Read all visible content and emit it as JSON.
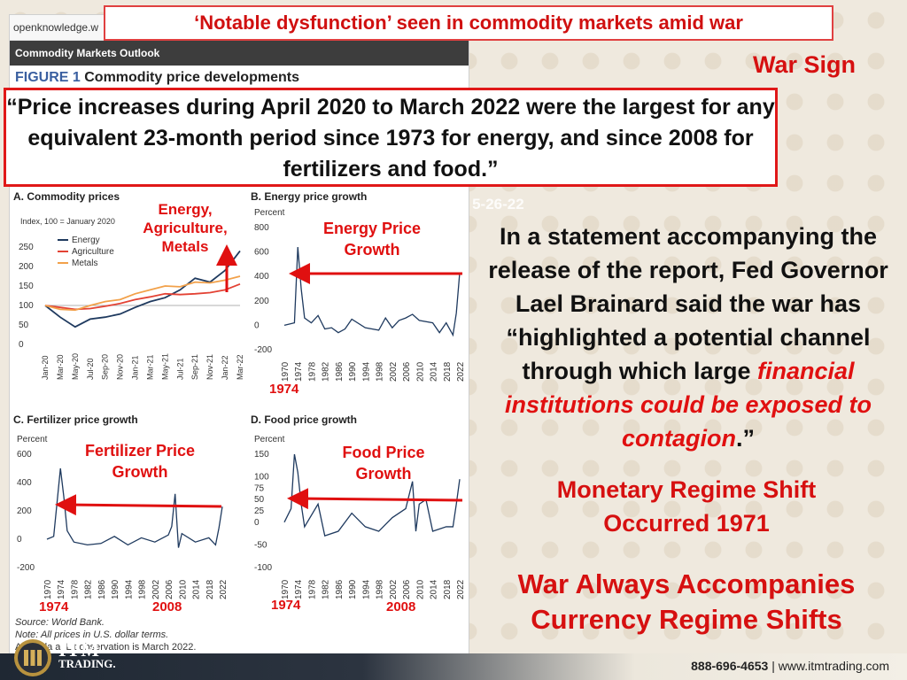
{
  "headline": "‘Notable dysfunction’ seen in commodity markets amid war",
  "war_sign": "War Sign",
  "faded_text": "u 5-26-22",
  "doc": {
    "url": "openknowledge.w",
    "section": "Commodity Markets Outlook",
    "figure_label": "FIGURE 1",
    "figure_title": "Commodity price developments",
    "source": "Source: World Bank.",
    "note1": "Note: All prices in U.S. dollar terms.",
    "note2": "A   thly da  a. L  t observation is March 2022."
  },
  "quote": "“Price increases during April 2020 to March 2022 were the largest for any equivalent 23-month period since 1973 for energy, and since 2008 for fertilizers and food.”",
  "statement": {
    "part1": "In a statement accompanying the release of the report, Fed Governor Lael Brainard said the war has “highlighted a potential channel through which large ",
    "red": "financial institutions could be exposed to contagion",
    "part2": ".”"
  },
  "regime_line1": "Monetary Regime Shift",
  "regime_line2": "Occurred 1971",
  "always_line1": "War Always Accompanies",
  "always_line2": "Currency Regime Shifts",
  "annotations": {
    "energy_ag_metals": [
      "Energy,",
      "Agriculture,",
      "Metals"
    ],
    "energy_growth": [
      "Energy Price",
      "Growth"
    ],
    "fert_growth": [
      "Fertilizer Price",
      "Growth"
    ],
    "food_growth": [
      "Food Price",
      "Growth"
    ],
    "y1974": "1974",
    "y2008": "2008"
  },
  "footer": {
    "brand_top": "ITM",
    "brand_bottom": "TRADING.",
    "phone": "888-696-4653",
    "sep": "|",
    "site": "www.itmtrading.com"
  },
  "colors": {
    "red": "#e01010",
    "energy": "#1f3a5f",
    "agriculture": "#e34234",
    "metals": "#f2a14a"
  },
  "chart_data": [
    {
      "type": "line",
      "title": "A. Commodity prices",
      "ylabel": "Index, 100 = January 2020",
      "ylim": [
        0,
        250
      ],
      "yticks": [
        0,
        50,
        100,
        150,
        200,
        250
      ],
      "categories": [
        "Jan-20",
        "Mar-20",
        "May-20",
        "Jul-20",
        "Sep-20",
        "Nov-20",
        "Jan-21",
        "Mar-21",
        "May-21",
        "Jul-21",
        "Sep-21",
        "Nov-21",
        "Jan-22",
        "Mar-22"
      ],
      "series": [
        {
          "name": "Energy",
          "values": [
            100,
            70,
            45,
            65,
            70,
            78,
            95,
            110,
            120,
            140,
            170,
            160,
            190,
            240
          ]
        },
        {
          "name": "Agriculture",
          "values": [
            100,
            95,
            90,
            92,
            98,
            105,
            115,
            122,
            130,
            128,
            130,
            133,
            140,
            155
          ]
        },
        {
          "name": "Metals",
          "values": [
            100,
            90,
            88,
            100,
            110,
            115,
            130,
            140,
            150,
            148,
            160,
            158,
            165,
            175
          ]
        }
      ]
    },
    {
      "type": "line",
      "title": "B. Energy price growth",
      "ylabel": "Percent",
      "ylim": [
        -200,
        800
      ],
      "yticks": [
        -200,
        0,
        200,
        400,
        600,
        800
      ],
      "x": [
        1970,
        1973,
        1974,
        1975,
        1976,
        1978,
        1980,
        1982,
        1984,
        1986,
        1988,
        1990,
        1994,
        1998,
        2000,
        2002,
        2004,
        2006,
        2008,
        2010,
        2014,
        2016,
        2018,
        2020,
        2021,
        2022
      ],
      "xticks": [
        "1970",
        "1974",
        "1978",
        "1982",
        "1986",
        "1990",
        "1994",
        "1998",
        "2002",
        "2006",
        "2010",
        "2014",
        "2018",
        "2022"
      ],
      "values": [
        0,
        20,
        640,
        300,
        60,
        20,
        80,
        -30,
        -20,
        -60,
        -30,
        50,
        -20,
        -40,
        60,
        -20,
        40,
        60,
        90,
        40,
        20,
        -60,
        20,
        -80,
        100,
        430
      ]
    },
    {
      "type": "line",
      "title": "C. Fertilizer price growth",
      "ylabel": "Percent",
      "ylim": [
        -200,
        600
      ],
      "yticks": [
        -200,
        0,
        200,
        400,
        600
      ],
      "x": [
        1970,
        1972,
        1974,
        1975,
        1976,
        1978,
        1982,
        1986,
        1990,
        1994,
        1998,
        2002,
        2006,
        2007,
        2008,
        2009,
        2010,
        2014,
        2018,
        2020,
        2021,
        2022
      ],
      "xticks": [
        "1970",
        "1974",
        "1978",
        "1982",
        "1986",
        "1990",
        "1994",
        "1998",
        "2002",
        "2006",
        "2010",
        "2014",
        "2018",
        "2022"
      ],
      "values": [
        0,
        20,
        500,
        300,
        60,
        -20,
        -40,
        -30,
        20,
        -40,
        10,
        -20,
        30,
        90,
        320,
        -60,
        40,
        -20,
        10,
        -40,
        80,
        230
      ]
    },
    {
      "type": "line",
      "title": "D. Food price growth",
      "ylabel": "Percent",
      "ylim": [
        -100,
        150
      ],
      "yticks": [
        -100,
        -50,
        0,
        25,
        50,
        75,
        100,
        150
      ],
      "x": [
        1970,
        1972,
        1973,
        1974,
        1975,
        1976,
        1980,
        1982,
        1986,
        1990,
        1994,
        1998,
        2002,
        2006,
        2008,
        2009,
        2010,
        2012,
        2014,
        2018,
        2020,
        2021,
        2022
      ],
      "xticks": [
        "1970",
        "1974",
        "1978",
        "1982",
        "1986",
        "1990",
        "1994",
        "1998",
        "2002",
        "2006",
        "2010",
        "2014",
        "2018",
        "2022"
      ],
      "values": [
        0,
        30,
        150,
        110,
        40,
        -10,
        40,
        -30,
        -20,
        20,
        -10,
        -20,
        10,
        30,
        90,
        -20,
        40,
        50,
        -20,
        -10,
        -10,
        40,
        95
      ]
    }
  ]
}
